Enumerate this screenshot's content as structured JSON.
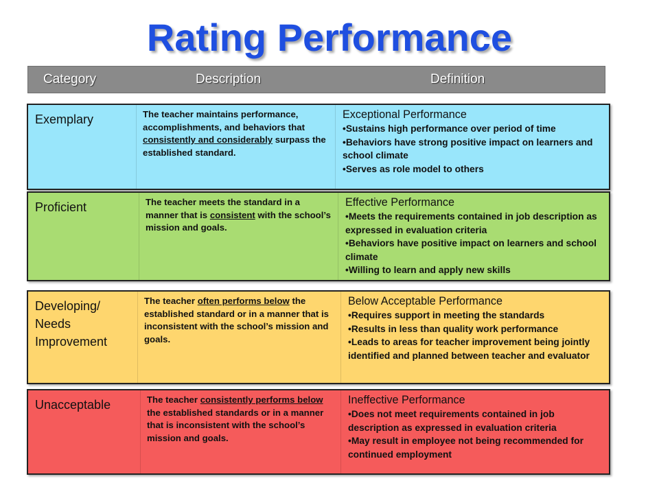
{
  "title": "Rating Performance",
  "header": {
    "category": "Category",
    "description": "Description",
    "definition": "Definition"
  },
  "rows": [
    {
      "category": "Exemplary",
      "color": "#99e6fb",
      "desc_pre": "The teacher maintains performance, accomplishments, and behaviors that ",
      "desc_em": "consistently and considerably",
      "desc_post": " surpass the established standard.",
      "def_head": "Exceptional Performance",
      "bullets": [
        "Sustains high performance over period of time",
        "Behaviors have strong positive impact on learners and school climate",
        "Serves as role model to others"
      ]
    },
    {
      "category": "Proficient",
      "color": "#a9dc72",
      "desc_pre": "The teacher meets the standard in a manner that is ",
      "desc_em": "consistent",
      "desc_post": " with the school’s mission and goals.",
      "def_head": "Effective Performance",
      "bullets": [
        "Meets the requirements contained in job description as expressed in evaluation criteria",
        "Behaviors have positive impact on learners and school climate",
        "Willing to learn and apply new skills"
      ]
    },
    {
      "category": "Developing/ Needs Improvement",
      "color": "#fed66e",
      "desc_pre": "The teacher ",
      "desc_em": "often performs below",
      "desc_post": " the established standard or in a manner that is inconsistent with the school’s mission and goals.",
      "def_head": "Below Acceptable Performance",
      "bullets": [
        "Requires support in meeting the standards",
        "Results in less than quality work performance",
        "Leads to areas for teacher improvement being jointly identified and planned between teacher and evaluator"
      ]
    },
    {
      "category": "Unacceptable",
      "color": "#f55b5b",
      "desc_pre": "The teacher ",
      "desc_em": "consistently performs below",
      "desc_post": " the established standards or in a manner that is inconsistent with the school’s mission and goals.",
      "def_head": "Ineffective Performance",
      "bullets": [
        "Does not meet requirements contained in job description as expressed in evaluation criteria",
        "May result in employee not being recommended for continued employment"
      ]
    }
  ]
}
